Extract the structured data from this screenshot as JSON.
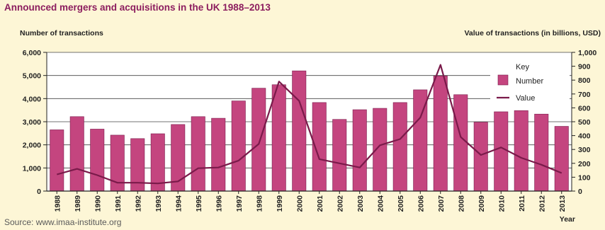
{
  "title": "Announced mergers and acquisitions in the UK 1988–2013",
  "source": "Source: www.imaa-institute.org",
  "colors": {
    "background": "#fdf6d6",
    "plot_background": "#ffffff",
    "bar_fill": "#c4457f",
    "bar_stroke": "#7a1a4a",
    "line": "#7a1a4a",
    "title": "#8c1d5e"
  },
  "chart_data": {
    "type": "bar",
    "xlabel": "Year",
    "ylabel_left": "Number of transactions",
    "ylabel_right": "Value of transactions (in billions, USD)",
    "ylim_left": [
      0,
      6000
    ],
    "ylim_right": [
      0,
      1000
    ],
    "yticks_left": [
      "0",
      "1,000",
      "2,000",
      "3,000",
      "4,000",
      "5,000",
      "6,000"
    ],
    "yticks_right": [
      "0",
      "100",
      "200",
      "300",
      "400",
      "500",
      "600",
      "700",
      "800",
      "900",
      "1,000"
    ],
    "grid": true,
    "legend_title": "Key",
    "legend_position": "top-right",
    "categories": [
      "1988",
      "1989",
      "1990",
      "1991",
      "1992",
      "1993",
      "1994",
      "1995",
      "1996",
      "1997",
      "1998",
      "1999",
      "2000",
      "2001",
      "2002",
      "2003",
      "2004",
      "2005",
      "2006",
      "2007",
      "2008",
      "2009",
      "2010",
      "2011",
      "2012",
      "2013"
    ],
    "series": [
      {
        "name": "Number",
        "type": "bar",
        "axis": "left",
        "values": [
          2650,
          3220,
          2680,
          2420,
          2270,
          2480,
          2880,
          3220,
          3150,
          3900,
          4450,
          4600,
          5200,
          3830,
          3100,
          3520,
          3580,
          3830,
          4380,
          4980,
          4170,
          2980,
          3430,
          3480,
          3330,
          2800
        ]
      },
      {
        "name": "Value",
        "type": "line",
        "axis": "right",
        "values": [
          120,
          160,
          115,
          60,
          60,
          55,
          70,
          165,
          170,
          220,
          340,
          790,
          650,
          230,
          200,
          170,
          330,
          375,
          530,
          910,
          390,
          260,
          315,
          240,
          190,
          130
        ]
      }
    ]
  }
}
